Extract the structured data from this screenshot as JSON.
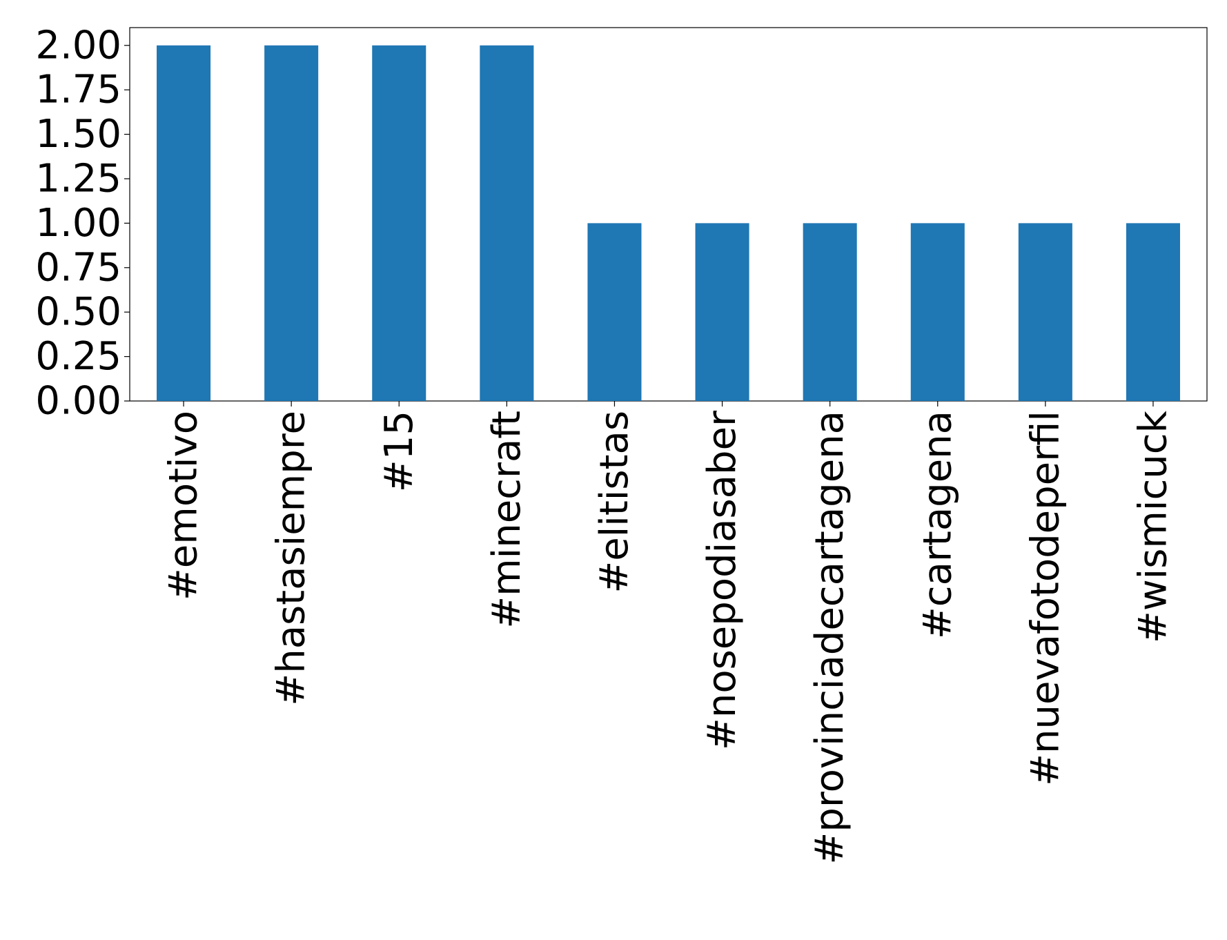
{
  "chart_data": {
    "type": "bar",
    "categories": [
      "#emotivo",
      "#hastasiempre",
      "#15",
      "#minecraft",
      "#elitistas",
      "#nosepodiasaber",
      "#provinciadecartagena",
      "#cartagena",
      "#nuevafotodeperfil",
      "#wismicuck"
    ],
    "values": [
      2,
      2,
      2,
      2,
      1,
      1,
      1,
      1,
      1,
      1
    ],
    "color": "#1f77b4",
    "ylim": [
      0,
      2.1
    ],
    "yticks": [
      {
        "value": 0,
        "label": "0.00"
      },
      {
        "value": 0.25,
        "label": "0.25"
      },
      {
        "value": 0.5,
        "label": "0.50"
      },
      {
        "value": 0.75,
        "label": "0.75"
      },
      {
        "value": 1,
        "label": "1.00"
      },
      {
        "value": 1.25,
        "label": "1.25"
      },
      {
        "value": 1.5,
        "label": "1.50"
      },
      {
        "value": 1.75,
        "label": "1.75"
      },
      {
        "value": 2,
        "label": "2.00"
      }
    ],
    "grid": false
  }
}
